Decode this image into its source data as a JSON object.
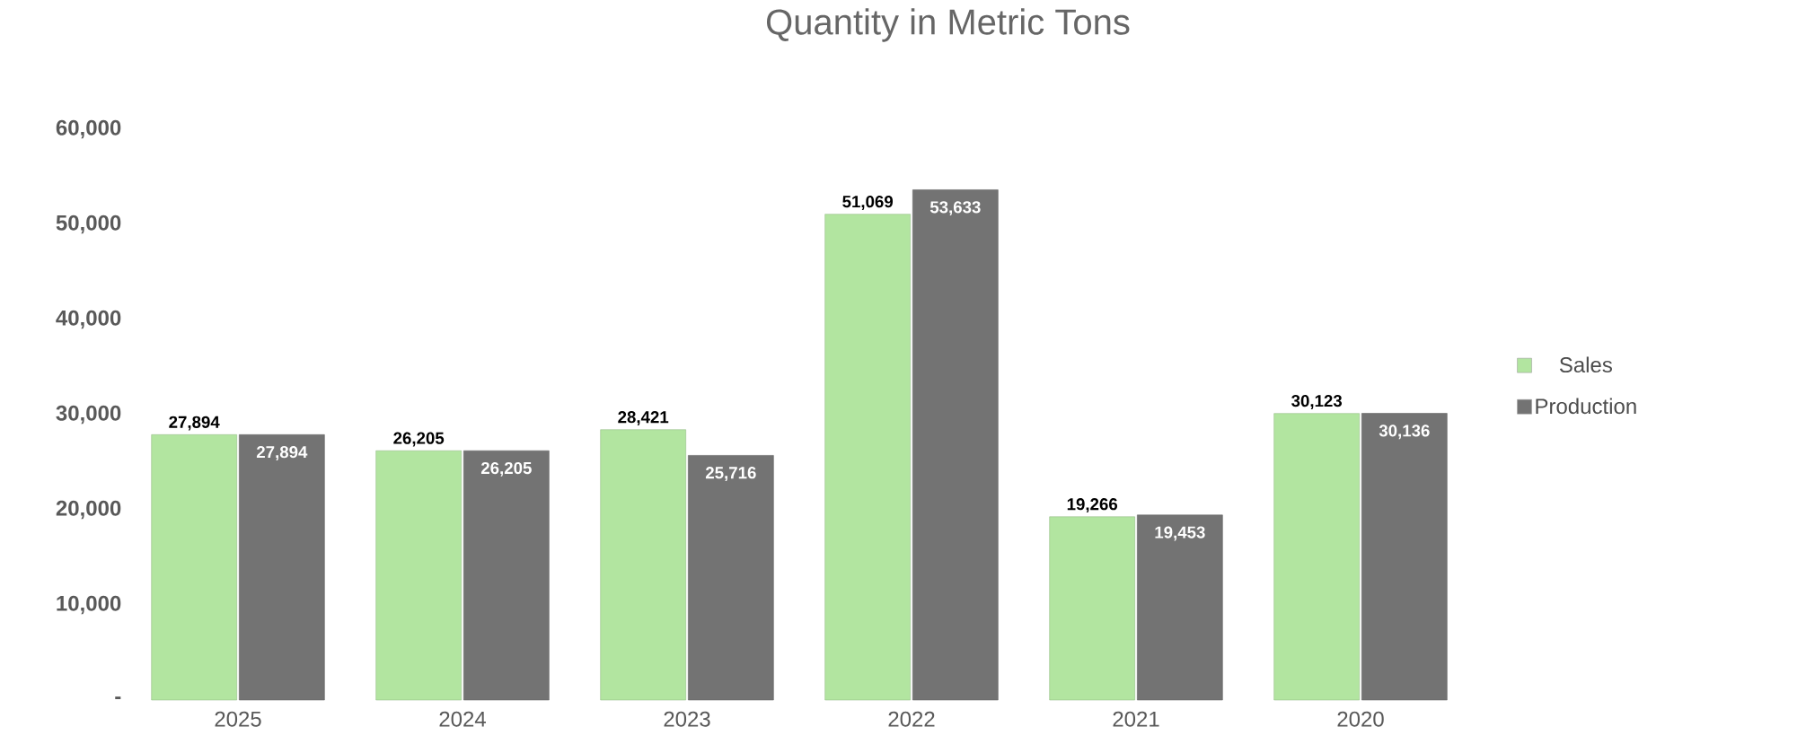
{
  "chart_data": {
    "type": "bar",
    "title": "Quantity in Metric Tons",
    "categories": [
      "2025",
      "2024",
      "2023",
      "2022",
      "2021",
      "2020"
    ],
    "series": [
      {
        "name": "Sales",
        "color": "#b2e5a0",
        "values": [
          27894,
          26205,
          28421,
          51069,
          19266,
          30123
        ],
        "value_labels": [
          "27,894",
          "26,205",
          "28,421",
          "51,069",
          "19,266",
          "30,123"
        ]
      },
      {
        "name": "Production",
        "color": "#737373",
        "values": [
          27894,
          26205,
          25716,
          53633,
          19453,
          30136
        ],
        "value_labels": [
          "27,894",
          "26,205",
          "25,716",
          "53,633",
          "19,453",
          "30,136"
        ]
      }
    ],
    "ylim": [
      0,
      60000
    ],
    "yticks": [
      {
        "value": 0,
        "label": "-"
      },
      {
        "value": 10000,
        "label": "10,000"
      },
      {
        "value": 20000,
        "label": "20,000"
      },
      {
        "value": 30000,
        "label": "30,000"
      },
      {
        "value": 40000,
        "label": "40,000"
      },
      {
        "value": 50000,
        "label": "50,000"
      },
      {
        "value": 60000,
        "label": "60,000"
      }
    ],
    "legend": "right"
  }
}
